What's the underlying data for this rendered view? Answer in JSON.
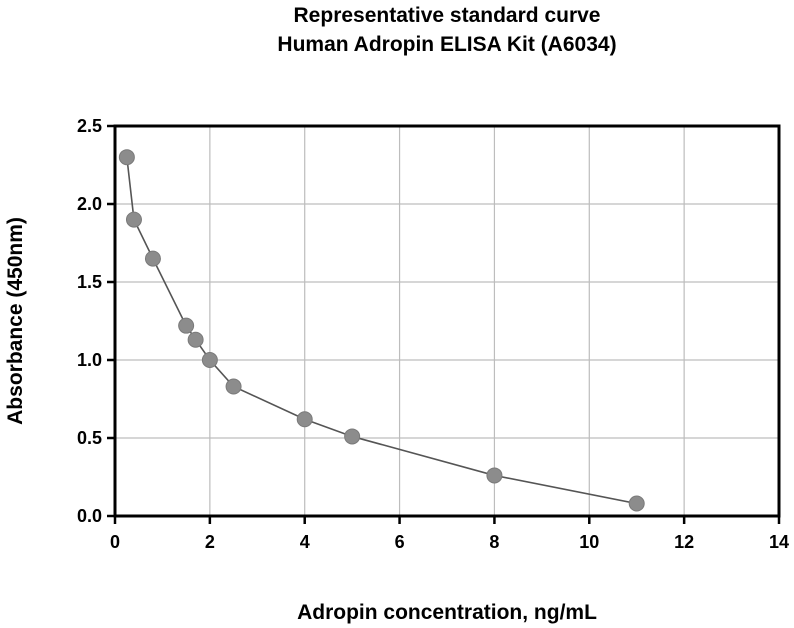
{
  "chart_data": {
    "type": "scatter",
    "title": [
      "Representative standard curve",
      "Human Adropin ELISA Kit (A6034)"
    ],
    "xlabel": "Adropin concentration, ng/mL",
    "ylabel": "Absorbance (450nm)",
    "xlim": [
      0,
      14
    ],
    "ylim": [
      0,
      2.5
    ],
    "x_ticks": [
      0,
      2,
      4,
      6,
      8,
      10,
      12,
      14
    ],
    "y_ticks": [
      0,
      0.5,
      1,
      1.5,
      2,
      2.5
    ],
    "x_tick_labels": [
      "0",
      "2",
      "4",
      "6",
      "8",
      "10",
      "12",
      "14"
    ],
    "y_tick_labels": [
      "0.0",
      "0.5",
      "1.0",
      "1.5",
      "2.0",
      "2.5"
    ],
    "grid": true,
    "legend": "none",
    "connect_points": true,
    "series": [
      {
        "x": [
          0.25,
          0.4,
          0.8,
          1.5,
          1.7,
          2.0,
          2.5,
          4.0,
          5.0,
          8.0,
          11.0
        ],
        "y": [
          2.3,
          1.9,
          1.65,
          1.22,
          1.13,
          1.0,
          0.83,
          0.62,
          0.51,
          0.26,
          0.08
        ]
      }
    ],
    "colors": {
      "point": "#8c8c8c",
      "line": "#555555",
      "grid": "#bdbdbd",
      "frame": "#000000"
    }
  }
}
